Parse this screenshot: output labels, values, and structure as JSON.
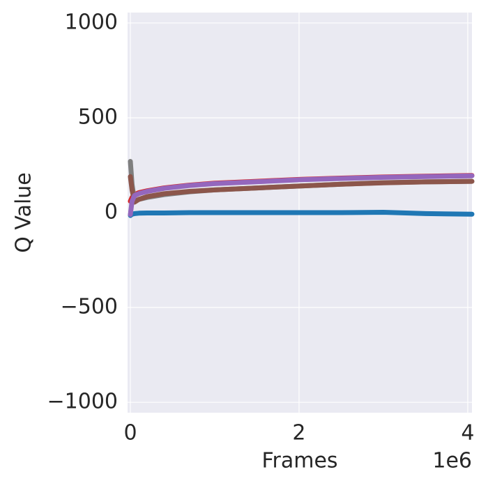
{
  "chart_data": {
    "type": "line",
    "x_label": "Frames",
    "y_label": "Q Value",
    "x_offset_label": "1e6",
    "x": [
      0,
      0.02,
      0.05,
      0.1,
      0.2,
      0.4,
      0.7,
      1,
      1.5,
      2,
      2.5,
      3,
      3.5,
      4.05
    ],
    "series": [
      {
        "color": "#1f77b4",
        "values": [
          -15,
          -8,
          -5,
          -3,
          -2,
          -2,
          0,
          0,
          0,
          0,
          0,
          2,
          -5,
          -8
        ]
      },
      {
        "color": "#d62728",
        "values": [
          60,
          80,
          95,
          105,
          115,
          130,
          145,
          155,
          165,
          175,
          182,
          188,
          192,
          196
        ]
      },
      {
        "color": "#7f7f7f",
        "values": [
          270,
          150,
          60,
          70,
          80,
          95,
          110,
          120,
          130,
          140,
          150,
          158,
          162,
          165
        ]
      },
      {
        "color": "#8c564b",
        "values": [
          190,
          120,
          55,
          70,
          85,
          100,
          112,
          120,
          130,
          140,
          150,
          157,
          162,
          165
        ]
      },
      {
        "color": "#9467bd",
        "values": [
          -10,
          60,
          90,
          100,
          112,
          128,
          143,
          153,
          163,
          173,
          180,
          186,
          190,
          194
        ]
      }
    ],
    "xlim": [
      -0.033,
      4.05
    ],
    "xticks": [
      0,
      2,
      4
    ],
    "ylim": [
      -1055,
      1055
    ],
    "yticks": [
      {
        "value": -1000,
        "label": "−1000"
      },
      {
        "value": -500,
        "label": "−500"
      },
      0,
      500,
      1000
    ],
    "grid": true,
    "background": "#eaeaf2"
  }
}
